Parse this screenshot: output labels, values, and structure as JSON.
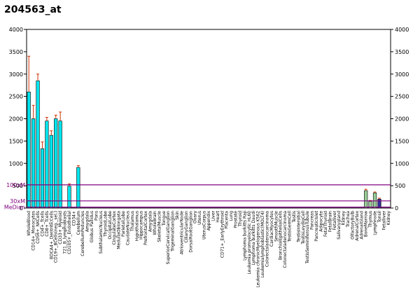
{
  "page_title": "204563_at",
  "chart_data": {
    "type": "bar",
    "title": "204563_at",
    "xlabel": "",
    "ylabel": "",
    "ylim": [
      0,
      4000
    ],
    "left_ticks": [
      "0",
      "500",
      "1000",
      "1500",
      "2000",
      "2500",
      "3000",
      "3500",
      "4000"
    ],
    "right_ticks": [
      "0",
      "500",
      "1000",
      "1500",
      "2000",
      "2500",
      "3000",
      "3500",
      "4000"
    ],
    "categories": [
      "WholeBlood",
      "CD14+_Monocytes",
      "CD56+_NKCells",
      "CD4+_Tcells",
      "CD8+_Tcells",
      "BDCA4+_DentriticCells",
      "CD19+_BCells(neg._sel.)",
      "CD33+_Myeloid",
      "721_B_lymphoblasts",
      "CD105+_Endothelial",
      "CD34+",
      "Cerebellum",
      "CerebellumPeduncles",
      "Amygdala",
      "Globus Pallidus",
      "Pons",
      "SubthalamicNucleus",
      "ThyroidLobe",
      "OccipitalLobe",
      "CingulateCortex",
      "MedullaOblongata",
      "ParietalLobe",
      "CaudateNucleus",
      "Thalamus",
      "Hypothalamus",
      "Hippocampus",
      "PrefrontalCortex",
      "Amygdala",
      "WholeBrain",
      "SkeletalMuscle",
      "Tongue",
      "SuperiorCervicalGanglion",
      "TrigeminalGanglion",
      "Skin",
      "AtrioventricularNode",
      "CiliaryGanglion",
      "DorsalRootGanglion",
      "Ovary",
      "Uterus",
      "UterusCorpus",
      "Appendix",
      "Liver",
      "Heart",
      "CD71+_EarlyErythroid",
      "Placenta",
      "Lung",
      "Prostate",
      "Thyroid",
      "Lymphoma burkitts Raji",
      "Leukemia promyelocytic HL60",
      "Lymphoma burkitts Daudi",
      "Leukemia chronicMyelogenous K562",
      "Leukemialymphoblastic(MOLT4)",
      "Colorectaladenocarcinoma",
      "CardiacMyocytes",
      "SmoothMuscle",
      "BronchialEpithelialCells",
      "Colonectaladenocarcinoma",
      "TestisGermCell",
      "Testis",
      "TestisIntersitial",
      "TestisLeydigCell",
      "TestisSeminiferousTubule",
      "Pancreas",
      "PancreaticIslet",
      "Adipocyte",
      "FetalThyroid",
      "FetalBrain",
      "Fetalliver",
      "Salivarygland",
      "Kidney",
      "Trachea",
      "OlfactoryBulb",
      "AdrenalCortex",
      "AdrenalGland",
      "BoneMarrow",
      "Thymus",
      "Lymphnode",
      "Tonsil",
      "Fetalliver",
      "Kidney"
    ],
    "series": [
      {
        "values": [
          2600,
          2000,
          2850,
          1330,
          1950,
          1630,
          2000,
          1950,
          0,
          490,
          0,
          910,
          0,
          0,
          0,
          0,
          0,
          0,
          0,
          0,
          0,
          0,
          0,
          0,
          0,
          0,
          0,
          0,
          0,
          0,
          0,
          0,
          0,
          0,
          0,
          0,
          0,
          0,
          0,
          0,
          0,
          0,
          0,
          0,
          0,
          0,
          0,
          0,
          0,
          0,
          0,
          0,
          0,
          0,
          0,
          0,
          0,
          0,
          0,
          0,
          0,
          0,
          0,
          0,
          0,
          0,
          0,
          0,
          0,
          0,
          0,
          0,
          0,
          0,
          0,
          0,
          0,
          0,
          0,
          0,
          0
        ],
        "errors": [
          800,
          300,
          150,
          150,
          80,
          100,
          80,
          200,
          0,
          50,
          0,
          40,
          0,
          0,
          0,
          0,
          0,
          0,
          0,
          0,
          0,
          0,
          0,
          0,
          0,
          0,
          0,
          0,
          0,
          0,
          0,
          0,
          0,
          0,
          0,
          0,
          0,
          0,
          0,
          0,
          0,
          0,
          0,
          0,
          0,
          0,
          0,
          0,
          0,
          0,
          0,
          0,
          0,
          0,
          0,
          0,
          0,
          0,
          0,
          0,
          0,
          0,
          0,
          0,
          0,
          0,
          0,
          0,
          0,
          0,
          0,
          0,
          0,
          0,
          0,
          0,
          0,
          0,
          0,
          0,
          0
        ],
        "color": "#00e5ee"
      },
      {
        "values": [
          0,
          0,
          0,
          0,
          0,
          0,
          0,
          0,
          0,
          0,
          0,
          0,
          0,
          0,
          0,
          0,
          0,
          0,
          0,
          0,
          0,
          0,
          0,
          0,
          0,
          0,
          0,
          0,
          0,
          0,
          0,
          0,
          0,
          0,
          0,
          0,
          0,
          0,
          0,
          0,
          0,
          0,
          0,
          0,
          0,
          0,
          0,
          0,
          0,
          0,
          0,
          0,
          0,
          0,
          0,
          0,
          0,
          0,
          0,
          0,
          0,
          0,
          0,
          0,
          0,
          0,
          0,
          0,
          0,
          0,
          0,
          0,
          0,
          0,
          0,
          390,
          150,
          340,
          200,
          0,
          0
        ],
        "errors": [
          0,
          0,
          0,
          0,
          0,
          0,
          0,
          0,
          0,
          0,
          0,
          0,
          0,
          0,
          0,
          0,
          0,
          0,
          0,
          0,
          0,
          0,
          0,
          0,
          0,
          0,
          0,
          0,
          0,
          0,
          0,
          0,
          0,
          0,
          0,
          0,
          0,
          0,
          0,
          0,
          0,
          0,
          0,
          0,
          0,
          0,
          0,
          0,
          0,
          0,
          0,
          0,
          0,
          0,
          0,
          0,
          0,
          0,
          0,
          0,
          0,
          0,
          0,
          0,
          0,
          0,
          0,
          0,
          0,
          0,
          0,
          0,
          0,
          0,
          0,
          30,
          20,
          20,
          20,
          0,
          0
        ],
        "color": "#99cc99"
      }
    ],
    "highlight": {
      "index": 78,
      "value": 200,
      "color": "#333399"
    },
    "reference_lines": [
      {
        "label": "100xM",
        "value": 520,
        "color": "#800080"
      },
      {
        "label": "30xM",
        "value": 160,
        "color": "#800080"
      },
      {
        "label": "MeDian",
        "value": 20,
        "color": "#800080"
      }
    ],
    "grid": false,
    "legend": "none"
  }
}
